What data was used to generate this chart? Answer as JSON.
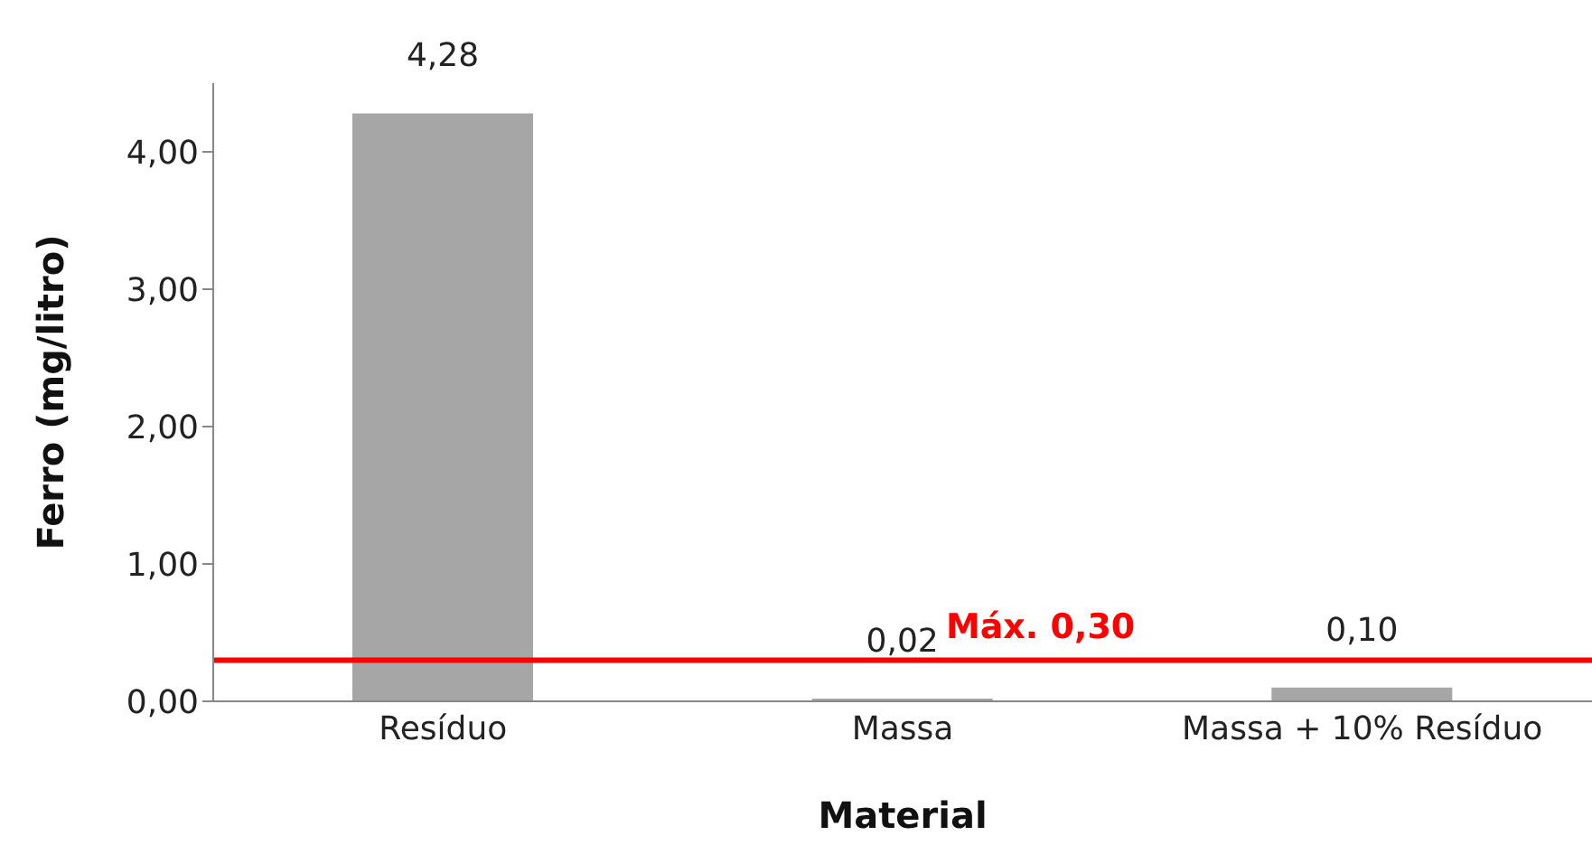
{
  "chart_data": {
    "type": "bar",
    "xlabel": "Material",
    "ylabel": "Ferro (mg/litro)",
    "categories": [
      "Resíduo",
      "Massa",
      "Massa + 10% Resíduo"
    ],
    "values": [
      4.28,
      0.02,
      0.1
    ],
    "color": "#a6a6a6",
    "value_labels": [
      "4,28",
      "0,02",
      "0,10"
    ],
    "ylim": [
      0,
      4.5
    ],
    "yticks": [
      {
        "value": 0,
        "label": "0,00"
      },
      {
        "value": 1,
        "label": "1,00"
      },
      {
        "value": 2,
        "label": "2,00"
      },
      {
        "value": 3,
        "label": "3,00"
      },
      {
        "value": 4,
        "label": "4,00"
      }
    ],
    "ref_lines": [
      {
        "axis": "y",
        "value": 0.3,
        "label": "Máx. 0,30",
        "color": "#ff0000"
      }
    ],
    "grid": false,
    "legend": false
  }
}
